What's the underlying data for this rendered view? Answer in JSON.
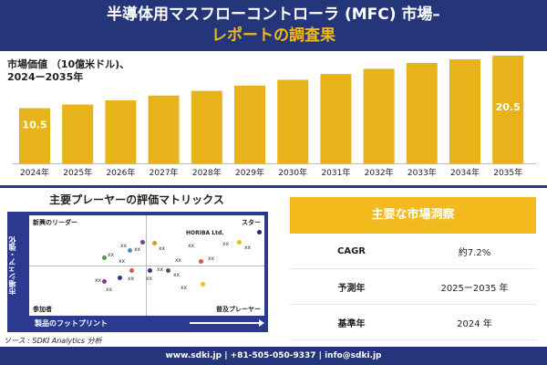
{
  "header": {
    "title_line1": "半導体用マスフローコントローラ (MFC) 市場–",
    "title_line2": "レポートの調査果"
  },
  "chart_desc": {
    "line1": "市場価値 （10億米ドル)、",
    "line2": "2024ー2035年"
  },
  "chart_data": {
    "type": "bar",
    "categories": [
      "2024年",
      "2025年",
      "2026年",
      "2027年",
      "2028年",
      "2029年",
      "2030年",
      "2031年",
      "2032年",
      "2033年",
      "2034年",
      "2035年"
    ],
    "values": [
      10.5,
      11.2,
      12.0,
      12.9,
      13.8,
      14.8,
      15.9,
      17.0,
      18.0,
      19.1,
      19.8,
      20.5
    ],
    "value_labels": [
      "10.5",
      "",
      "",
      "",
      "",
      "",
      "",
      "",
      "",
      "",
      "",
      "20.5"
    ],
    "bar_color": "#e7b21a"
  },
  "matrix": {
    "title": "主要プレーヤーの評価マトリックス",
    "quadrants": {
      "top_left": "新興のリーダー",
      "top_right": "スター",
      "bottom_left": "参加者",
      "bottom_right": "普及プレーヤー"
    },
    "y_axis_label": "市場シェア・強化",
    "x_axis_label": "製品のフットプリント",
    "highlight_label": "HORIBA Ltd.",
    "placeholder": "xx",
    "frame_color": "#2b3a8f"
  },
  "source": "ソース : SDKI Analytics 分析",
  "insights": {
    "title": "主要な市場洞察",
    "rows": [
      {
        "key": "CAGR",
        "value": "約7.2%"
      },
      {
        "key": "予測年",
        "value": "2025ー2035 年"
      },
      {
        "key": "基準年",
        "value": "2024 年"
      }
    ],
    "accent": "#f2ba1c"
  },
  "footer": "www.sdki.jp | +81-505-050-9337 | info@sdki.jp"
}
